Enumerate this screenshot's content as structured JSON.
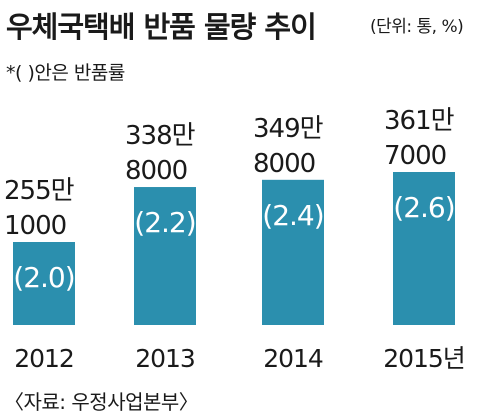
{
  "title": "우체국택배 반품 물량 추이",
  "unit": "(단위: 통, %)",
  "note": "*( )안은 반품률",
  "source": "〈자료: 우정사업본부〉",
  "colors": {
    "bar": "#2b8fae",
    "text": "#1a1a1a",
    "rate_text": "#ffffff"
  },
  "chart_data": {
    "type": "bar",
    "title": "우체국택배 반품 물량 추이",
    "unit": "통, %",
    "categories": [
      "2012",
      "2013",
      "2014",
      "2015년"
    ],
    "values": [
      2551000,
      3388000,
      3498000,
      3617000
    ],
    "value_labels": [
      [
        "255만",
        "1000"
      ],
      [
        "338만",
        "8000"
      ],
      [
        "349만",
        "8000"
      ],
      [
        "361만",
        "7000"
      ]
    ],
    "return_rates": [
      2.0,
      2.2,
      2.4,
      2.6
    ],
    "rate_labels": [
      "(2.0)",
      "(2.2)",
      "(2.4)",
      "(2.6)"
    ],
    "grid": false,
    "legend": "none"
  }
}
